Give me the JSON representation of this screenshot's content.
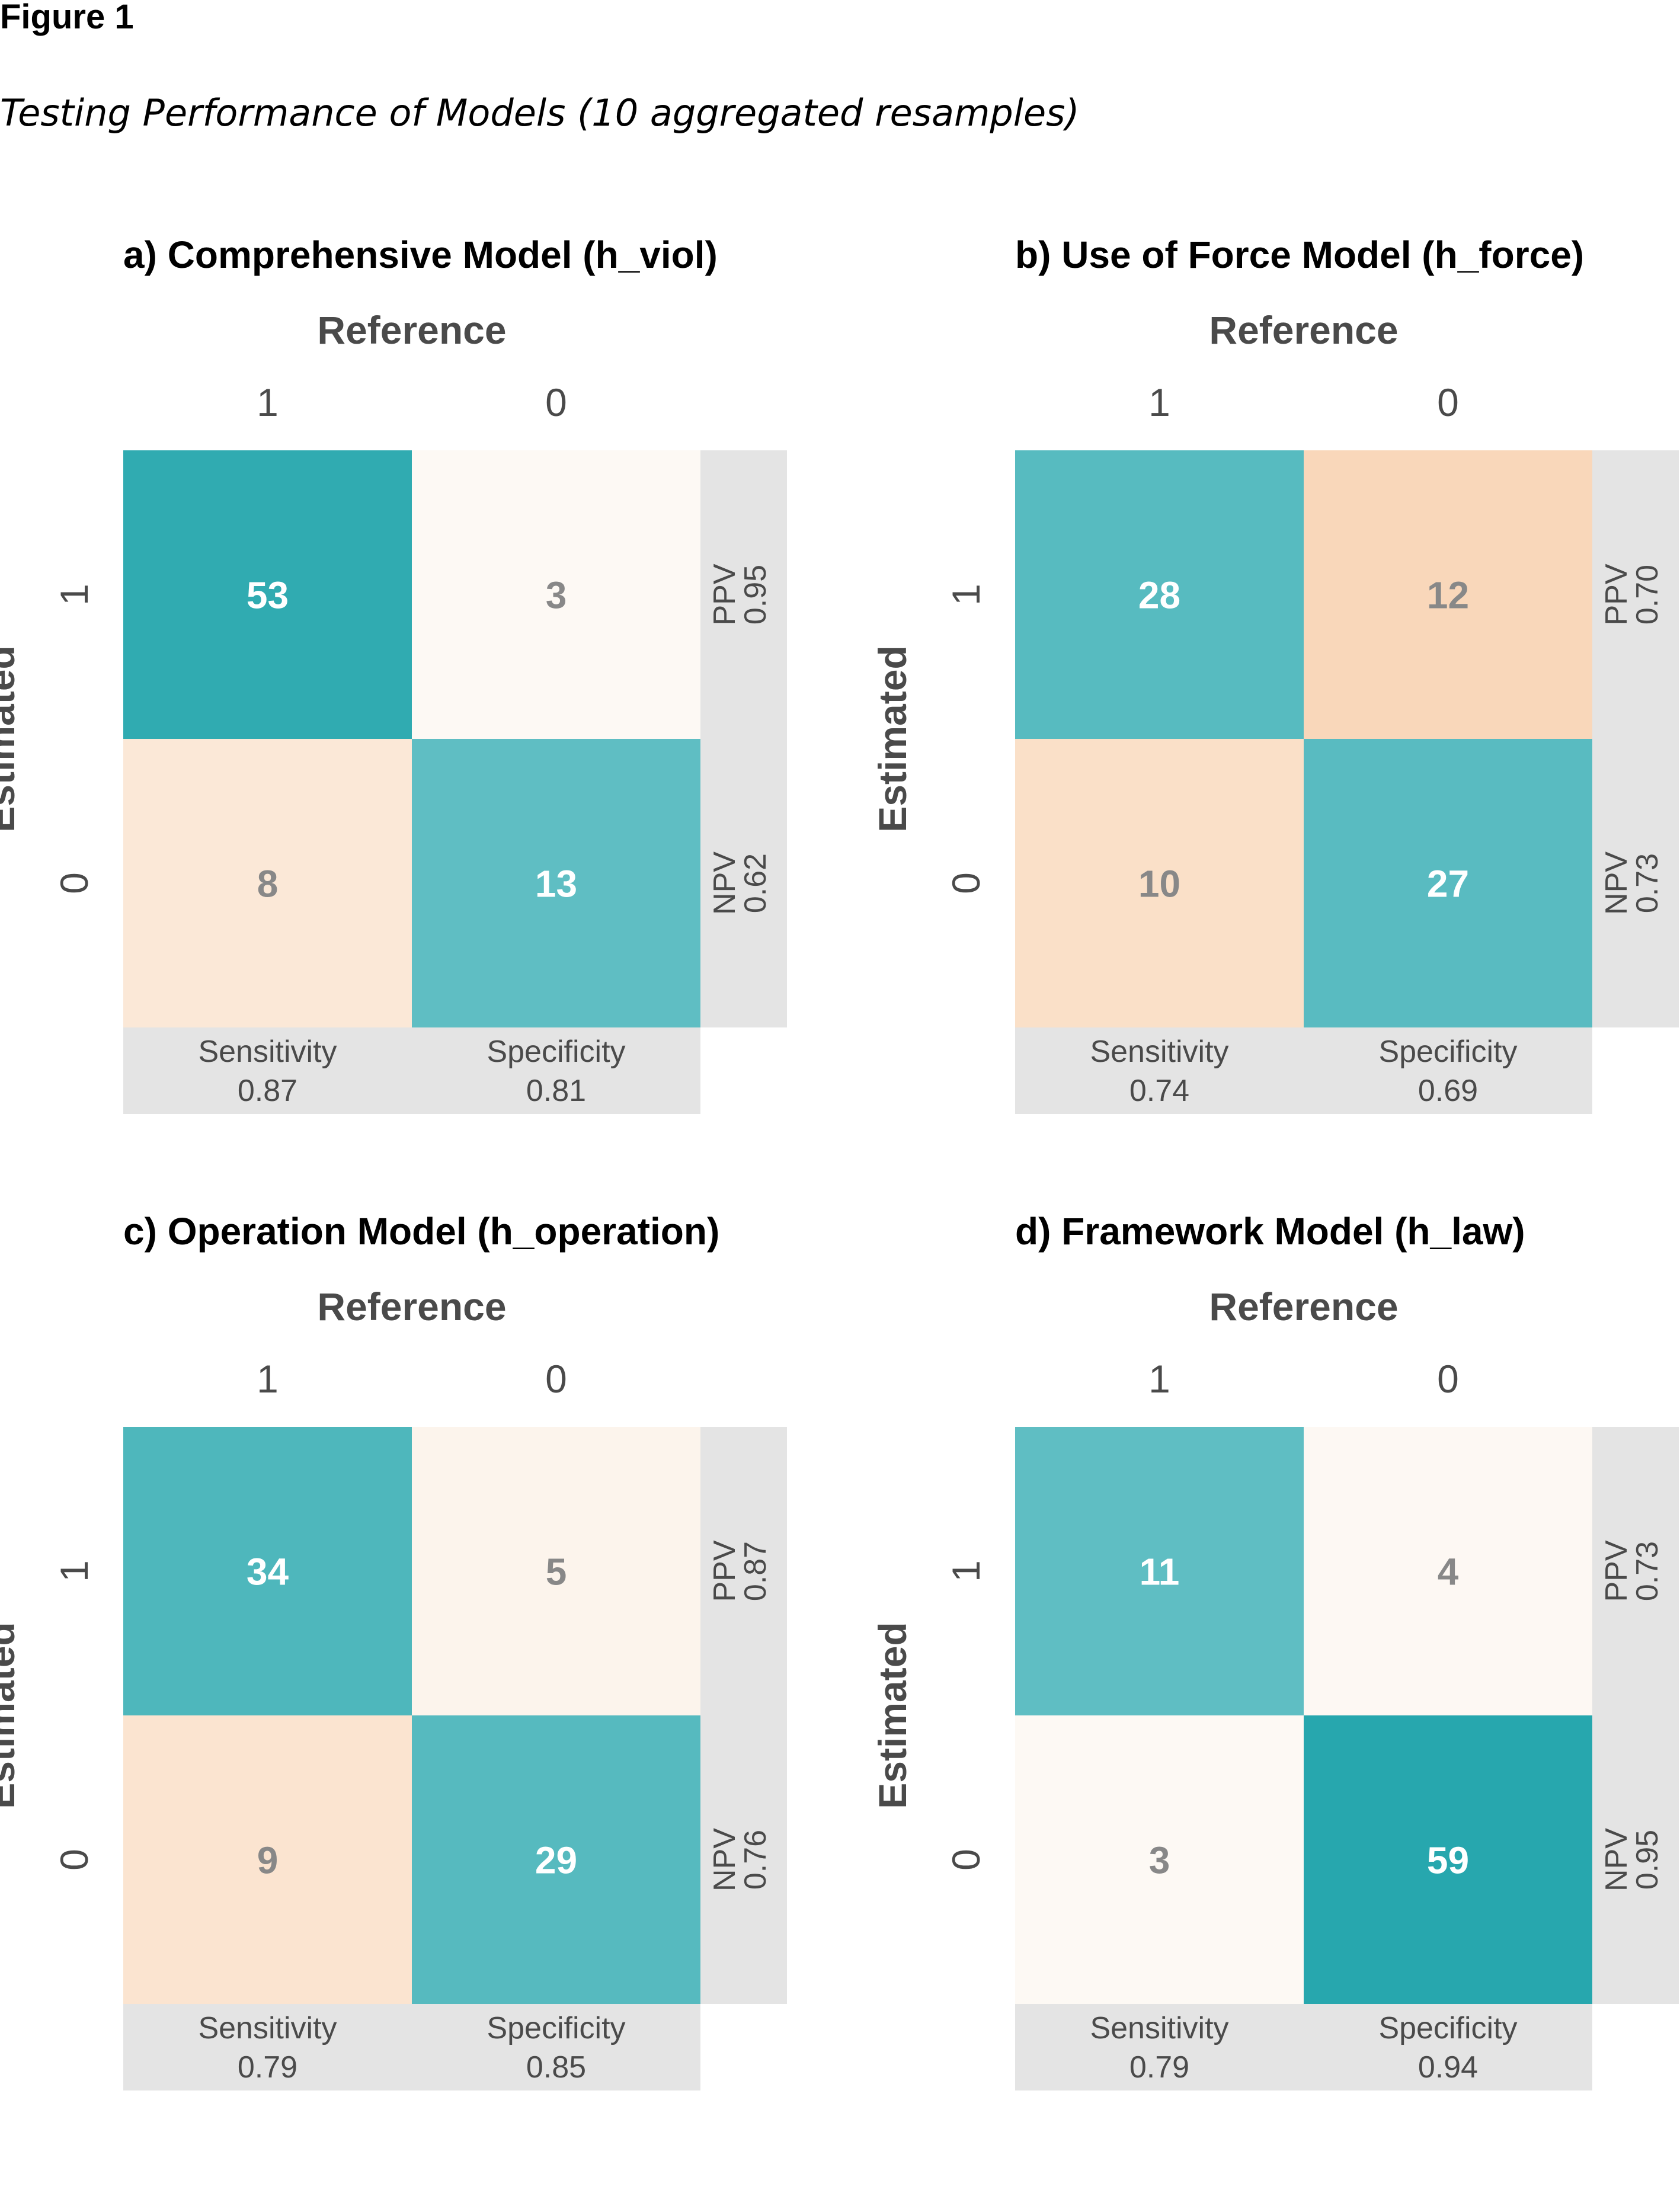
{
  "figure": {
    "label": "Figure 1",
    "caption": "Testing Performance of Models (10 aggregated resamples)"
  },
  "colors": {
    "high": "#23a5ac",
    "mid": "#5fbec3",
    "low": "#fdf9f4",
    "peach": "#f9d6b8",
    "metric_bg": "#e4e4e4",
    "text_light": "#ffffff",
    "text_dark": "#888888",
    "axis_text": "#4a4a4a"
  },
  "chart_data": [
    {
      "type": "heatmap",
      "title": "a) Comprehensive Model (h_viol)",
      "xlabel": "Reference",
      "ylabel": "Estimated",
      "x_ticks": [
        "1",
        "0"
      ],
      "y_ticks": [
        "1",
        "0"
      ],
      "cells": [
        [
          53,
          3
        ],
        [
          8,
          13
        ]
      ],
      "column_metrics": [
        {
          "name": "Sensitivity",
          "value": "0.87"
        },
        {
          "name": "Specificity",
          "value": "0.81"
        }
      ],
      "row_metrics": [
        {
          "name": "PPV",
          "value": "0.95"
        },
        {
          "name": "NPV",
          "value": "0.62"
        }
      ]
    },
    {
      "type": "heatmap",
      "title": "b) Use of Force Model (h_force)",
      "xlabel": "Reference",
      "ylabel": "Estimated",
      "x_ticks": [
        "1",
        "0"
      ],
      "y_ticks": [
        "1",
        "0"
      ],
      "cells": [
        [
          28,
          12
        ],
        [
          10,
          27
        ]
      ],
      "column_metrics": [
        {
          "name": "Sensitivity",
          "value": "0.74"
        },
        {
          "name": "Specificity",
          "value": "0.69"
        }
      ],
      "row_metrics": [
        {
          "name": "PPV",
          "value": "0.70"
        },
        {
          "name": "NPV",
          "value": "0.73"
        }
      ]
    },
    {
      "type": "heatmap",
      "title": "c) Operation Model (h_operation)",
      "xlabel": "Reference",
      "ylabel": "Estimated",
      "x_ticks": [
        "1",
        "0"
      ],
      "y_ticks": [
        "1",
        "0"
      ],
      "cells": [
        [
          34,
          5
        ],
        [
          9,
          29
        ]
      ],
      "column_metrics": [
        {
          "name": "Sensitivity",
          "value": "0.79"
        },
        {
          "name": "Specificity",
          "value": "0.85"
        }
      ],
      "row_metrics": [
        {
          "name": "PPV",
          "value": "0.87"
        },
        {
          "name": "NPV",
          "value": "0.76"
        }
      ]
    },
    {
      "type": "heatmap",
      "title": "d) Framework Model (h_law)",
      "xlabel": "Reference",
      "ylabel": "Estimated",
      "x_ticks": [
        "1",
        "0"
      ],
      "y_ticks": [
        "1",
        "0"
      ],
      "cells": [
        [
          11,
          4
        ],
        [
          3,
          59
        ]
      ],
      "column_metrics": [
        {
          "name": "Sensitivity",
          "value": "0.79"
        },
        {
          "name": "Specificity",
          "value": "0.94"
        }
      ],
      "row_metrics": [
        {
          "name": "PPV",
          "value": "0.73"
        },
        {
          "name": "NPV",
          "value": "0.95"
        }
      ]
    }
  ]
}
